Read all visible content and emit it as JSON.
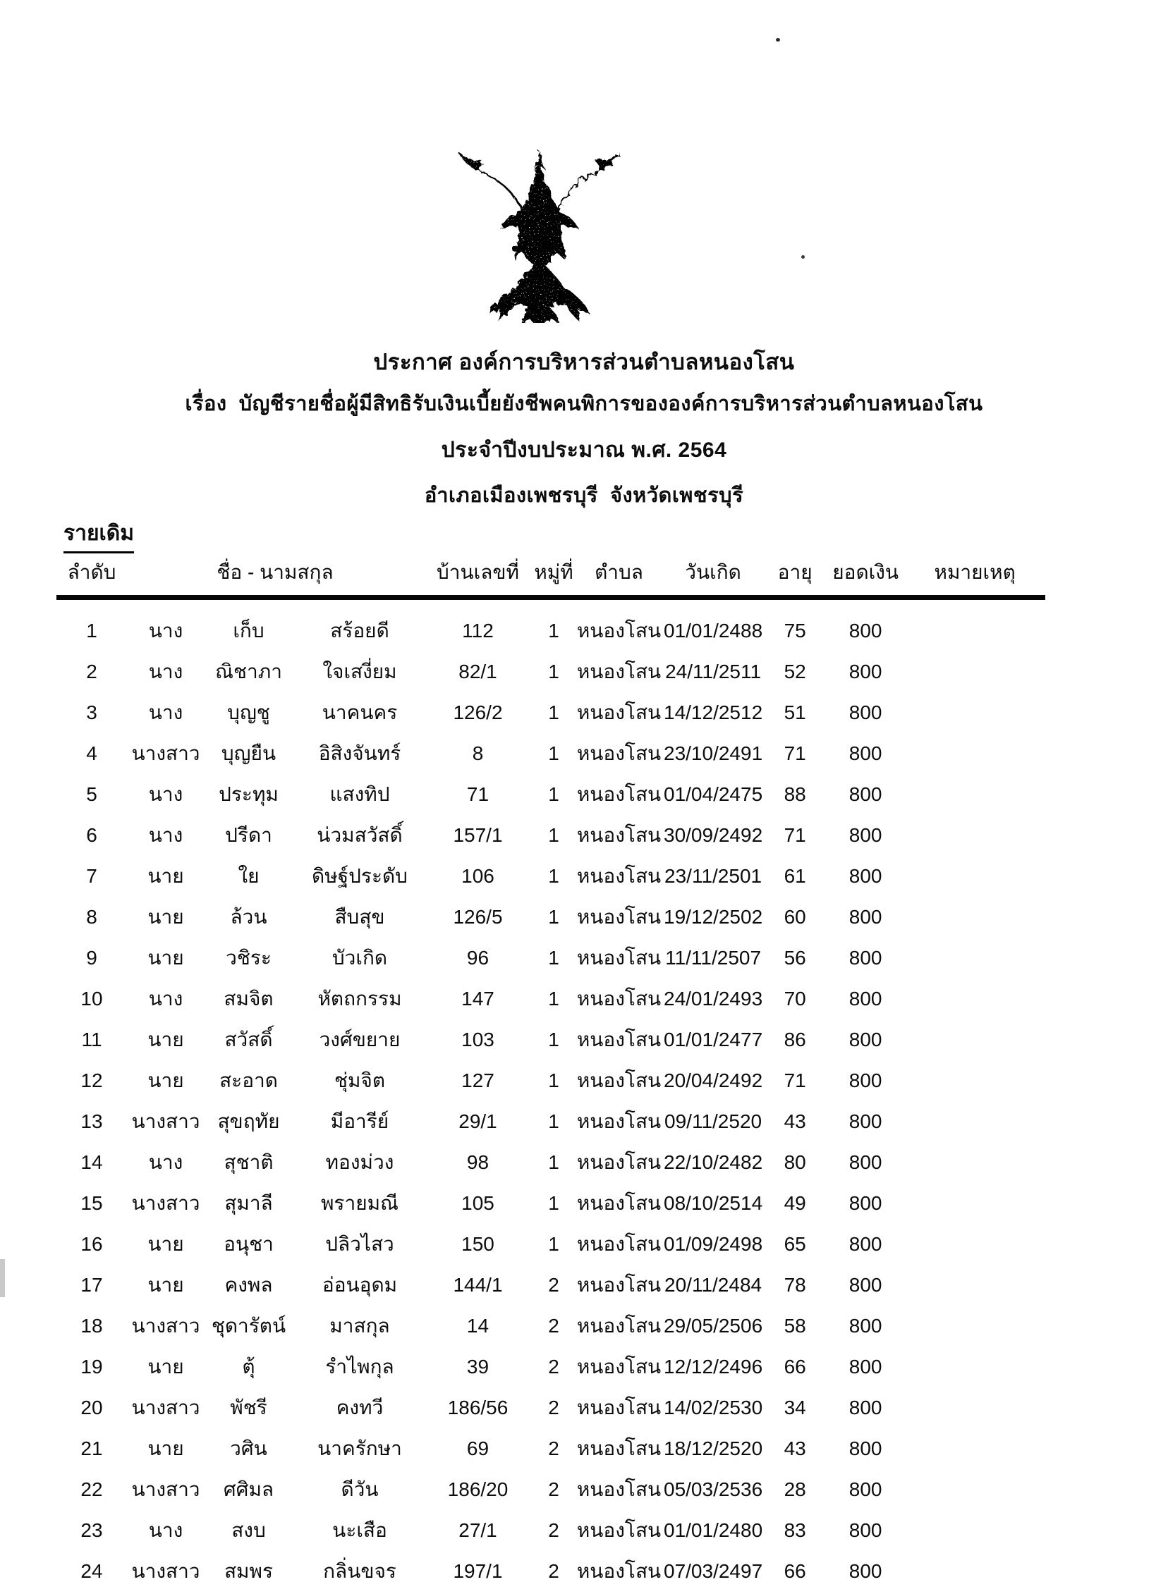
{
  "document": {
    "emblem": "garuda-national-emblem",
    "title_line1": "ประกาศ องค์การบริหารส่วนตำบลหนองโสน",
    "title_line2": "เรื่อง  บัญชีรายชื่อผู้มีสิทธิรับเงินเบี้ยยังชีพคนพิการขององค์การบริหารส่วนตำบลหนองโสน",
    "title_line3": "ประจำปีงบประมาณ พ.ศ. 2564",
    "title_line4": "อำเภอเมืองเพชรบุรี  จังหวัดเพชรบุรี",
    "section_label": "รายเดิม"
  },
  "table": {
    "headers": [
      "ลำดับ",
      "ชื่อ - นามสกุล",
      "บ้านเลขที่",
      "หมู่ที่",
      "ตำบล",
      "วันเกิด",
      "อายุ",
      "ยอดเงิน",
      "หมายเหตุ"
    ],
    "rows": [
      [
        "1",
        "นาง",
        "เก็บ",
        "สร้อยดี",
        "112",
        "1",
        "หนองโสน",
        "01/01/2488",
        "75",
        "800",
        ""
      ],
      [
        "2",
        "นาง",
        "ณิชาภา",
        "ใจเสงี่ยม",
        "82/1",
        "1",
        "หนองโสน",
        "24/11/2511",
        "52",
        "800",
        ""
      ],
      [
        "3",
        "นาง",
        "บุญชู",
        "นาคนคร",
        "126/2",
        "1",
        "หนองโสน",
        "14/12/2512",
        "51",
        "800",
        ""
      ],
      [
        "4",
        "นางสาว",
        "บุญยืน",
        "อิสิงจันทร์",
        "8",
        "1",
        "หนองโสน",
        "23/10/2491",
        "71",
        "800",
        ""
      ],
      [
        "5",
        "นาง",
        "ประทุม",
        "แสงทิป",
        "71",
        "1",
        "หนองโสน",
        "01/04/2475",
        "88",
        "800",
        ""
      ],
      [
        "6",
        "นาง",
        "ปรีดา",
        "น่วมสวัสดิ์",
        "157/1",
        "1",
        "หนองโสน",
        "30/09/2492",
        "71",
        "800",
        ""
      ],
      [
        "7",
        "นาย",
        "ใย",
        "ดิษฐ์ประดับ",
        "106",
        "1",
        "หนองโสน",
        "23/11/2501",
        "61",
        "800",
        ""
      ],
      [
        "8",
        "นาย",
        "ล้วน",
        "สืบสุข",
        "126/5",
        "1",
        "หนองโสน",
        "19/12/2502",
        "60",
        "800",
        ""
      ],
      [
        "9",
        "นาย",
        "วชิระ",
        "บัวเกิด",
        "96",
        "1",
        "หนองโสน",
        "11/11/2507",
        "56",
        "800",
        ""
      ],
      [
        "10",
        "นาง",
        "สมจิต",
        "หัตถกรรม",
        "147",
        "1",
        "หนองโสน",
        "24/01/2493",
        "70",
        "800",
        ""
      ],
      [
        "11",
        "นาย",
        "สวัสดิ์",
        "วงศ์ขยาย",
        "103",
        "1",
        "หนองโสน",
        "01/01/2477",
        "86",
        "800",
        ""
      ],
      [
        "12",
        "นาย",
        "สะอาด",
        "ชุ่มจิต",
        "127",
        "1",
        "หนองโสน",
        "20/04/2492",
        "71",
        "800",
        ""
      ],
      [
        "13",
        "นางสาว",
        "สุขฤทัย",
        "มีอารีย์",
        "29/1",
        "1",
        "หนองโสน",
        "09/11/2520",
        "43",
        "800",
        ""
      ],
      [
        "14",
        "นาง",
        "สุชาติ",
        "ทองม่วง",
        "98",
        "1",
        "หนองโสน",
        "22/10/2482",
        "80",
        "800",
        ""
      ],
      [
        "15",
        "นางสาว",
        "สุมาลี",
        "พรายมณี",
        "105",
        "1",
        "หนองโสน",
        "08/10/2514",
        "49",
        "800",
        ""
      ],
      [
        "16",
        "นาย",
        "อนุชา",
        "ปลิวไสว",
        "150",
        "1",
        "หนองโสน",
        "01/09/2498",
        "65",
        "800",
        ""
      ],
      [
        "17",
        "นาย",
        "คงพล",
        "อ่อนอุดม",
        "144/1",
        "2",
        "หนองโสน",
        "20/11/2484",
        "78",
        "800",
        ""
      ],
      [
        "18",
        "นางสาว",
        "ชุดารัตน์",
        "มาสกุล",
        "14",
        "2",
        "หนองโสน",
        "29/05/2506",
        "58",
        "800",
        ""
      ],
      [
        "19",
        "นาย",
        "ตุ้",
        "รำไพกุล",
        "39",
        "2",
        "หนองโสน",
        "12/12/2496",
        "66",
        "800",
        ""
      ],
      [
        "20",
        "นางสาว",
        "พัชรี",
        "คงทวี",
        "186/56",
        "2",
        "หนองโสน",
        "14/02/2530",
        "34",
        "800",
        ""
      ],
      [
        "21",
        "นาย",
        "วศิน",
        "นาครักษา",
        "69",
        "2",
        "หนองโสน",
        "18/12/2520",
        "43",
        "800",
        ""
      ],
      [
        "22",
        "นางสาว",
        "ศศิมล",
        "ดีวัน",
        "186/20",
        "2",
        "หนองโสน",
        "05/03/2536",
        "28",
        "800",
        ""
      ],
      [
        "23",
        "นาง",
        "สงบ",
        "นะเสือ",
        "27/1",
        "2",
        "หนองโสน",
        "01/01/2480",
        "83",
        "800",
        ""
      ],
      [
        "24",
        "นางสาว",
        "สมพร",
        "กลิ่นขจร",
        "197/1",
        "2",
        "หนองโสน",
        "07/03/2497",
        "66",
        "800",
        ""
      ]
    ]
  },
  "colors": {
    "ink": "#0d0d0d",
    "paper": "#ffffff"
  }
}
